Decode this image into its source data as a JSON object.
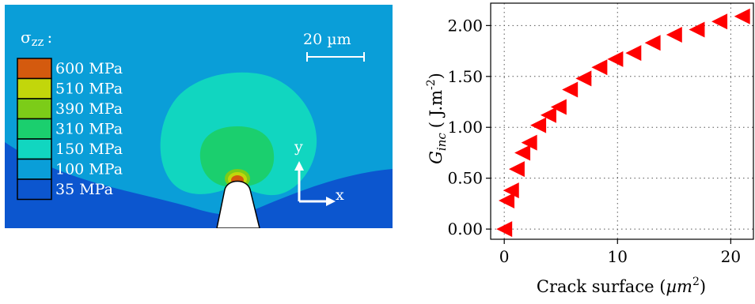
{
  "contour_map": {
    "field_label": "σ",
    "field_subscript": "zz",
    "field_colon": ":",
    "scale_bar_label": "20 µm",
    "axis_y_label": "y",
    "axis_x_label": "x",
    "legend": [
      {
        "label": "600 MPa",
        "color": "#d45a0e"
      },
      {
        "label": "510 MPa",
        "color": "#c2d60b"
      },
      {
        "label": "390 MPa",
        "color": "#7ccc18"
      },
      {
        "label": "310 MPa",
        "color": "#1bcf6e"
      },
      {
        "label": "150 MPa",
        "color": "#11d6c0"
      },
      {
        "label": "100 MPa",
        "color": "#0a9ed8"
      },
      {
        "label": "35   MPa",
        "color": "#0c56cf"
      }
    ],
    "colors": {
      "background": "#0a9ed8",
      "outer_zone": "#11d6c0",
      "inner_zone": "#1bcf6e",
      "bottom_zone": "#0c56cf",
      "tip_zone_1": "#7ccc18",
      "tip_zone_2": "#c2d60b",
      "tip_zone_3": "#d45a0e",
      "text": "#ffffff"
    }
  },
  "chart_data": {
    "type": "scatter",
    "marker": "triangle-left",
    "marker_color": "#ff0000",
    "title": "",
    "xlabel_prefix": "Crack surface (",
    "xlabel_unit": "µm",
    "xlabel_sup": "2",
    "xlabel_suffix": ")",
    "ylabel_base": "G",
    "ylabel_sub": "inc",
    "ylabel_unit": "( J.m",
    "ylabel_sup": "-2",
    "ylabel_close": ")",
    "xlim": [
      -1.2,
      22.0
    ],
    "ylim": [
      -0.1,
      2.22
    ],
    "xticks": [
      0,
      10,
      20
    ],
    "xtick_labels": [
      "0",
      "10",
      "20"
    ],
    "yticks": [
      0.0,
      0.5,
      1.0,
      1.5,
      2.0
    ],
    "ytick_labels": [
      "0.00",
      "0.50",
      "1.00",
      "1.50",
      "2.00"
    ],
    "grid": true,
    "points": [
      {
        "x": 0.0,
        "y": 0.0
      },
      {
        "x": 0.2,
        "y": 0.28
      },
      {
        "x": 0.6,
        "y": 0.38
      },
      {
        "x": 1.1,
        "y": 0.59
      },
      {
        "x": 1.6,
        "y": 0.75
      },
      {
        "x": 2.2,
        "y": 0.85
      },
      {
        "x": 3.0,
        "y": 1.02
      },
      {
        "x": 3.9,
        "y": 1.12
      },
      {
        "x": 4.8,
        "y": 1.2
      },
      {
        "x": 5.8,
        "y": 1.37
      },
      {
        "x": 7.0,
        "y": 1.48
      },
      {
        "x": 8.4,
        "y": 1.59
      },
      {
        "x": 9.8,
        "y": 1.67
      },
      {
        "x": 11.4,
        "y": 1.73
      },
      {
        "x": 13.1,
        "y": 1.83
      },
      {
        "x": 15.0,
        "y": 1.91
      },
      {
        "x": 17.0,
        "y": 1.96
      },
      {
        "x": 19.0,
        "y": 2.04
      },
      {
        "x": 21.0,
        "y": 2.09
      }
    ]
  }
}
